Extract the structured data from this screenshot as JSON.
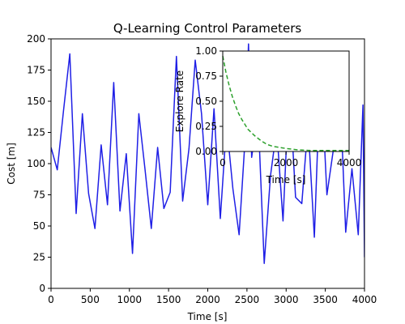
{
  "chart_data": [
    {
      "type": "line",
      "title": "Q-Learning Control Parameters",
      "xlabel": "Time [s]",
      "ylabel": "Cost [m]",
      "xlim": [
        0,
        4000
      ],
      "ylim": [
        0,
        200
      ],
      "xticks": [
        "0",
        "500",
        "1000",
        "1500",
        "2000",
        "2500",
        "3000",
        "3500",
        "4000"
      ],
      "yticks": [
        "0",
        "25",
        "50",
        "75",
        "100",
        "125",
        "150",
        "175",
        "200"
      ],
      "grid": false,
      "series": [
        {
          "color": "#1f1fe6",
          "x": [
            0,
            80,
            160,
            240,
            320,
            400,
            480,
            560,
            640,
            720,
            800,
            880,
            960,
            1040,
            1120,
            1200,
            1280,
            1360,
            1440,
            1520,
            1600,
            1680,
            1760,
            1840,
            1920,
            2000,
            2080,
            2160,
            2240,
            2320,
            2400,
            2480,
            2520,
            2560,
            2640,
            2720,
            2800,
            2880,
            2960,
            3040,
            3120,
            3200,
            3280,
            3360,
            3440,
            3520,
            3600,
            3680,
            3760,
            3840,
            3920,
            3980,
            4000
          ],
          "y": [
            113,
            95,
            143,
            188,
            60,
            140,
            76,
            48,
            115,
            67,
            165,
            62,
            108,
            28,
            140,
            95,
            48,
            113,
            64,
            77,
            186,
            70,
            112,
            183,
            140,
            67,
            144,
            56,
            132,
            80,
            43,
            123,
            196,
            105,
            143,
            20,
            90,
            128,
            54,
            165,
            73,
            68,
            132,
            41,
            180,
            75,
            110,
            170,
            45,
            96,
            43,
            147,
            25
          ]
        }
      ]
    },
    {
      "type": "line",
      "title": "",
      "xlabel": "Time [s]",
      "ylabel": "Explore Rate",
      "xlim": [
        0,
        4000
      ],
      "ylim": [
        0,
        1
      ],
      "xticks": [
        "0",
        "2000",
        "4000"
      ],
      "yticks": [
        "0.00",
        "0.25",
        "0.50",
        "0.75",
        "1.00"
      ],
      "grid": false,
      "series": [
        {
          "color": "#2ca02c",
          "linestyle": "dashed",
          "x": [
            0,
            100,
            200,
            300,
            400,
            500,
            600,
            700,
            800,
            900,
            1000,
            1200,
            1400,
            1600,
            1800,
            2000,
            2400,
            2800,
            3200,
            3600,
            4000
          ],
          "y": [
            0.95,
            0.79,
            0.66,
            0.55,
            0.46,
            0.38,
            0.32,
            0.27,
            0.22,
            0.19,
            0.16,
            0.11,
            0.07,
            0.05,
            0.04,
            0.03,
            0.015,
            0.01,
            0.01,
            0.01,
            0.01
          ]
        }
      ]
    }
  ]
}
